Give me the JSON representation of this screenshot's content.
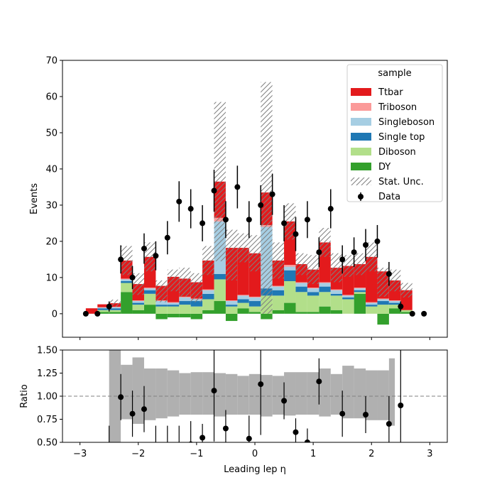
{
  "chart_data": [
    {
      "type": "bar",
      "panel": "main",
      "stacked": true,
      "xlim": [
        -3.3,
        3.3
      ],
      "ylim": [
        -6.5,
        70
      ],
      "ylabel": "Events",
      "xtick_labels": [
        "−3",
        "−2",
        "−1",
        "0",
        "1",
        "2",
        "3"
      ],
      "ytick_labels": [
        "0",
        "10",
        "20",
        "30",
        "40",
        "50",
        "60",
        "70"
      ],
      "ytick_values": [
        0,
        10,
        20,
        30,
        40,
        50,
        60,
        70
      ],
      "bin_edges": [
        -2.9,
        -2.7,
        -2.5,
        -2.3,
        -2.1,
        -1.9,
        -1.7,
        -1.5,
        -1.3,
        -1.1,
        -0.9,
        -0.7,
        -0.5,
        -0.3,
        -0.1,
        0.1,
        0.3,
        0.5,
        0.7,
        0.9,
        1.1,
        1.3,
        1.5,
        1.7,
        1.9,
        2.1,
        2.3,
        2.5,
        2.7,
        2.9
      ],
      "series": [
        {
          "name": "DY",
          "color": "#33a02c",
          "values": [
            0,
            0.5,
            0.5,
            6,
            1,
            2.5,
            -1.5,
            -1,
            -1,
            -1.5,
            1,
            3.5,
            -2,
            1.5,
            0.5,
            -1.5,
            1,
            3,
            0.5,
            0.5,
            2,
            1,
            0,
            5.5,
            0,
            -3,
            1.5,
            0.5,
            0
          ]
        },
        {
          "name": "Diboson",
          "color": "#b2df8a",
          "values": [
            0,
            0.5,
            0.5,
            2.5,
            1.5,
            3,
            2,
            2,
            2.5,
            2,
            3,
            6,
            2,
            1.5,
            1.5,
            5,
            4,
            6,
            5.5,
            4.5,
            4,
            4,
            4,
            0.5,
            2,
            2.5,
            1,
            0.5,
            0
          ]
        },
        {
          "name": "Single top",
          "color": "#1f78b4",
          "values": [
            0,
            0.5,
            0.5,
            0.5,
            0.5,
            1,
            0.5,
            0.5,
            1,
            1.5,
            1.5,
            1.5,
            0.5,
            1,
            1.5,
            2,
            1.5,
            3,
            1.5,
            1,
            1.5,
            0.5,
            0.5,
            0.5,
            0.5,
            1,
            0.5,
            0,
            0
          ]
        },
        {
          "name": "Singleboson",
          "color": "#a6cee3",
          "values": [
            0,
            0.2,
            0.3,
            0.5,
            0.5,
            0.5,
            1,
            0.5,
            1,
            0.5,
            1,
            14.5,
            1,
            1,
            1,
            17,
            1,
            1,
            1,
            1,
            1,
            1,
            0.5,
            0.5,
            0.5,
            0.5,
            0.5,
            0,
            0
          ]
        },
        {
          "name": "Triboson",
          "color": "#fb9a99",
          "values": [
            0,
            0.1,
            0.1,
            0.2,
            0.2,
            0.2,
            0.2,
            0.2,
            0.2,
            0.2,
            0.2,
            1,
            0.2,
            0.2,
            0.2,
            0.5,
            0.2,
            0.5,
            0.2,
            0.2,
            0.2,
            0.2,
            0.2,
            0.2,
            0.2,
            0.2,
            0.2,
            0,
            0
          ]
        },
        {
          "name": "Ttbar",
          "color": "#e31a1c",
          "values": [
            1.5,
            0.8,
            1,
            5,
            4.5,
            8.5,
            4,
            7,
            5,
            4.5,
            8,
            10,
            14.5,
            13,
            12,
            9,
            7,
            12,
            5,
            5,
            11,
            6,
            8,
            6.5,
            12.5,
            7.5,
            5.5,
            5.5,
            0
          ]
        }
      ],
      "stat_unc_halfwidth": [
        0,
        0,
        1,
        4,
        3,
        4,
        3,
        3,
        4,
        4,
        4,
        22,
        7,
        4,
        5,
        32,
        5,
        5,
        3,
        4,
        4,
        4,
        3,
        3,
        4,
        4,
        3,
        2,
        0
      ],
      "data_points": {
        "x": [
          -2.9,
          -2.7,
          -2.5,
          -2.3,
          -2.1,
          -1.9,
          -1.7,
          -1.5,
          -1.3,
          -1.1,
          -0.9,
          -0.7,
          -0.5,
          -0.3,
          -0.1,
          0.1,
          0.3,
          0.5,
          0.7,
          0.9,
          1.1,
          1.3,
          1.5,
          1.7,
          1.9,
          2.1,
          2.3,
          2.5,
          2.7,
          2.9
        ],
        "y": [
          0,
          0,
          2,
          15,
          10,
          18,
          16,
          21,
          31,
          29,
          25,
          34,
          26,
          35,
          26,
          30,
          33,
          25,
          22,
          26,
          17,
          29,
          15,
          17,
          19,
          20,
          11,
          2,
          0,
          0
        ],
        "yerr": [
          0,
          0,
          1.4,
          3.9,
          3.2,
          4.2,
          4,
          4.6,
          5.6,
          5.4,
          5,
          5.8,
          5.1,
          5.9,
          5.1,
          5.5,
          5.7,
          5,
          4.7,
          5.1,
          4.1,
          5.4,
          3.9,
          4.1,
          4.4,
          4.5,
          3.3,
          1.4,
          0,
          0
        ]
      },
      "legend": {
        "title": "sample",
        "location": "upper-right",
        "entries": [
          "Ttbar",
          "Triboson",
          "Singleboson",
          "Single top",
          "Diboson",
          "DY",
          "Stat. Unc.",
          "Data"
        ]
      }
    },
    {
      "type": "scatter",
      "panel": "ratio",
      "xlim": [
        -3.3,
        3.3
      ],
      "ylim": [
        0.5,
        1.5
      ],
      "xlabel": "Leading lep η",
      "ylabel": "Ratio",
      "xtick_labels": [
        "−3",
        "−2",
        "−1",
        "0",
        "1",
        "2",
        "3"
      ],
      "ytick_labels": [
        "0.50",
        "0.75",
        "1.00",
        "1.25",
        "1.50"
      ],
      "ytick_values": [
        0.5,
        0.75,
        1.0,
        1.25,
        1.5
      ],
      "reference_line": 1.0,
      "unc_band": {
        "edges": [
          -2.5,
          -2.3,
          -2.1,
          -1.9,
          -1.7,
          -1.5,
          -1.3,
          -1.1,
          -0.9,
          -0.7,
          -0.5,
          -0.3,
          -0.1,
          0.1,
          0.3,
          0.5,
          0.7,
          0.9,
          1.1,
          1.3,
          1.5,
          1.7,
          1.9,
          2.1,
          2.3,
          2.4
        ],
        "low": [
          0.4,
          0.75,
          0.7,
          0.74,
          0.76,
          0.78,
          0.8,
          0.8,
          0.8,
          0.78,
          0.8,
          0.8,
          0.8,
          0.78,
          0.8,
          0.79,
          0.8,
          0.8,
          0.78,
          0.8,
          0.76,
          0.76,
          0.74,
          0.74,
          0.68
        ],
        "high": [
          1.6,
          1.34,
          1.42,
          1.3,
          1.3,
          1.28,
          1.25,
          1.26,
          1.26,
          1.25,
          1.24,
          1.22,
          1.24,
          1.23,
          1.22,
          1.26,
          1.26,
          1.26,
          1.3,
          1.24,
          1.33,
          1.3,
          1.28,
          1.28,
          1.41
        ]
      },
      "points": {
        "x": [
          -2.3,
          -2.1,
          -1.9,
          -1.1,
          -0.9,
          -0.7,
          -0.5,
          -0.1,
          0.1,
          0.5,
          0.7,
          0.9,
          1.1,
          1.5,
          1.9,
          2.3,
          2.5
        ],
        "y": [
          0.99,
          0.81,
          0.86,
          0.48,
          0.55,
          1.06,
          0.65,
          0.54,
          1.13,
          0.95,
          0.61,
          0.5,
          1.16,
          0.81,
          0.8,
          0.7,
          0.9
        ],
        "yerr": [
          0.25,
          0.25,
          0.25,
          0.25,
          0.15,
          0.55,
          0.2,
          0.25,
          0.55,
          0.2,
          0.15,
          0.15,
          0.25,
          0.25,
          0.2,
          0.3,
          0.75
        ]
      },
      "error_only_x": [
        -2.5,
        -1.7,
        -1.5,
        -1.3
      ]
    }
  ]
}
